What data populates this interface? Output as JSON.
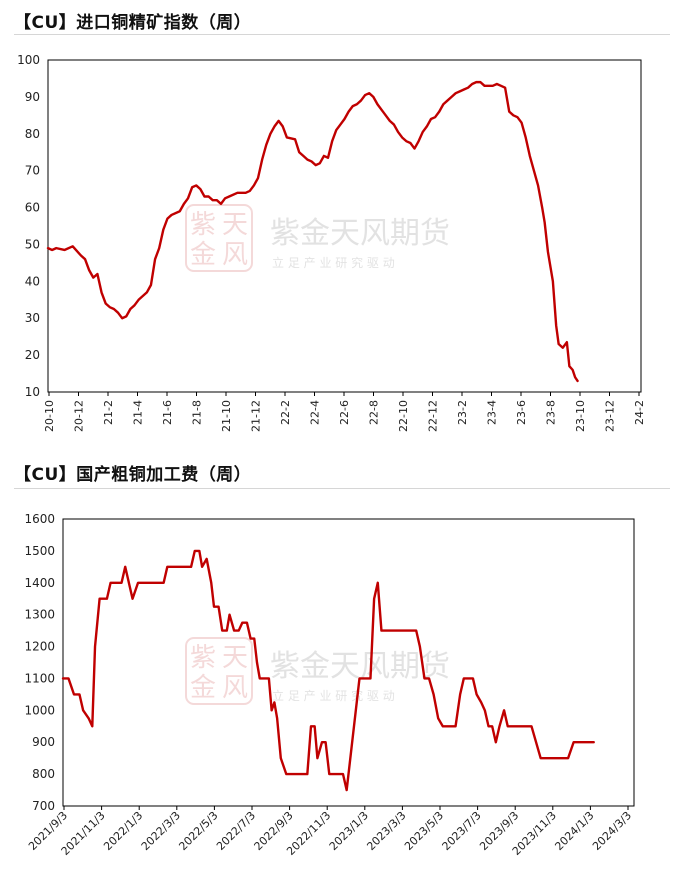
{
  "chart_data": [
    {
      "type": "line",
      "title": "【CU】进口铜精矿指数（周）",
      "ylim": [
        10,
        100
      ],
      "yticks": [
        10,
        20,
        30,
        40,
        50,
        60,
        70,
        80,
        90,
        100
      ],
      "xticks": [
        "20-10",
        "20-12",
        "21-2",
        "21-4",
        "21-6",
        "21-8",
        "21-10",
        "21-12",
        "22-2",
        "22-4",
        "22-6",
        "22-8",
        "22-10",
        "22-12",
        "23-2",
        "23-4",
        "23-6",
        "23-8",
        "23-10",
        "23-12",
        "24-2"
      ],
      "x_range": [
        0,
        72
      ],
      "grid": false,
      "color": "#C00000",
      "series": [
        {
          "values": [
            [
              0,
              49
            ],
            [
              0.5,
              48.5
            ],
            [
              1,
              49
            ],
            [
              2,
              48.5
            ],
            [
              3,
              49.5
            ],
            [
              4,
              47
            ],
            [
              4.5,
              46
            ],
            [
              5,
              43
            ],
            [
              5.5,
              41
            ],
            [
              6,
              42
            ],
            [
              6.5,
              37
            ],
            [
              7,
              34
            ],
            [
              7.5,
              33
            ],
            [
              8,
              32.5
            ],
            [
              8.5,
              31.5
            ],
            [
              9,
              30
            ],
            [
              9.5,
              30.5
            ],
            [
              10,
              32.5
            ],
            [
              10.5,
              33.5
            ],
            [
              11,
              35
            ],
            [
              12,
              37
            ],
            [
              12.5,
              39
            ],
            [
              13,
              46
            ],
            [
              13.5,
              49
            ],
            [
              14,
              54
            ],
            [
              14.5,
              57
            ],
            [
              15,
              58
            ],
            [
              16,
              59
            ],
            [
              16.5,
              61
            ],
            [
              17,
              62.5
            ],
            [
              17.5,
              65.5
            ],
            [
              18,
              66
            ],
            [
              18.5,
              65
            ],
            [
              19,
              63
            ],
            [
              19.5,
              63
            ],
            [
              20,
              62
            ],
            [
              20.5,
              62
            ],
            [
              21,
              61
            ],
            [
              21.5,
              62.5
            ],
            [
              22,
              63
            ],
            [
              23,
              64
            ],
            [
              24,
              64
            ],
            [
              24.5,
              64.5
            ],
            [
              25,
              66
            ],
            [
              25.5,
              68
            ],
            [
              26,
              73
            ],
            [
              26.5,
              77
            ],
            [
              27,
              80
            ],
            [
              27.5,
              82
            ],
            [
              28,
              83.5
            ],
            [
              28.5,
              82
            ],
            [
              29,
              79
            ],
            [
              30,
              78.5
            ],
            [
              30.5,
              75
            ],
            [
              31,
              74
            ],
            [
              31.5,
              73
            ],
            [
              32,
              72.5
            ],
            [
              32.5,
              71.5
            ],
            [
              33,
              72
            ],
            [
              33.5,
              74
            ],
            [
              34,
              73.5
            ],
            [
              34.5,
              78
            ],
            [
              35,
              81
            ],
            [
              35.5,
              82.5
            ],
            [
              36,
              84
            ],
            [
              36.5,
              86
            ],
            [
              37,
              87.5
            ],
            [
              37.5,
              88
            ],
            [
              38,
              89
            ],
            [
              38.5,
              90.5
            ],
            [
              39,
              91
            ],
            [
              39.5,
              90
            ],
            [
              40,
              88
            ],
            [
              40.5,
              86.5
            ],
            [
              41,
              85
            ],
            [
              41.5,
              83.5
            ],
            [
              42,
              82.5
            ],
            [
              42.5,
              80.5
            ],
            [
              43,
              79
            ],
            [
              43.5,
              78
            ],
            [
              44,
              77.5
            ],
            [
              44.5,
              76
            ],
            [
              45,
              78
            ],
            [
              45.5,
              80.5
            ],
            [
              46,
              82
            ],
            [
              46.5,
              84
            ],
            [
              47,
              84.5
            ],
            [
              47.5,
              86
            ],
            [
              48,
              88
            ],
            [
              48.5,
              89
            ],
            [
              49,
              90
            ],
            [
              49.5,
              91
            ],
            [
              50,
              91.5
            ],
            [
              50.5,
              92
            ],
            [
              51,
              92.5
            ],
            [
              51.5,
              93.5
            ],
            [
              52,
              94
            ],
            [
              52.5,
              94
            ],
            [
              53,
              93
            ],
            [
              53.5,
              93
            ],
            [
              54,
              93
            ],
            [
              54.5,
              93.5
            ],
            [
              55,
              93
            ],
            [
              55.5,
              92.5
            ],
            [
              56,
              86
            ],
            [
              56.5,
              85
            ],
            [
              57,
              84.5
            ],
            [
              57.5,
              83
            ],
            [
              58,
              79
            ],
            [
              58.5,
              74
            ],
            [
              59,
              70
            ],
            [
              59.5,
              66
            ],
            [
              60,
              60
            ],
            [
              60.3,
              56
            ],
            [
              60.7,
              48
            ],
            [
              61,
              44
            ],
            [
              61.3,
              40
            ],
            [
              61.7,
              28
            ],
            [
              62,
              23
            ],
            [
              62.5,
              22
            ],
            [
              63,
              23.5
            ],
            [
              63.3,
              17
            ],
            [
              63.7,
              16
            ],
            [
              64,
              14
            ],
            [
              64.3,
              13
            ]
          ]
        }
      ]
    },
    {
      "type": "line",
      "title": "【CU】国产粗铜加工费（周）",
      "ylim": [
        700,
        1600
      ],
      "yticks": [
        700,
        800,
        900,
        1000,
        1100,
        1200,
        1300,
        1400,
        1500,
        1600
      ],
      "xticks": [
        "2021/9/3",
        "2021/11/3",
        "2022/1/3",
        "2022/3/3",
        "2022/5/3",
        "2022/7/3",
        "2022/9/3",
        "2022/11/3",
        "2023/1/3",
        "2023/3/3",
        "2023/5/3",
        "2023/7/3",
        "2023/9/3",
        "2023/11/3",
        "2024/1/3",
        "2024/3/3"
      ],
      "x_range": [
        0,
        31.2
      ],
      "grid": false,
      "color": "#C00000",
      "series": [
        {
          "values": [
            [
              0,
              1100
            ],
            [
              0.3,
              1100
            ],
            [
              0.6,
              1050
            ],
            [
              0.9,
              1050
            ],
            [
              1.1,
              1000
            ],
            [
              1.4,
              975
            ],
            [
              1.6,
              950
            ],
            [
              1.75,
              1200
            ],
            [
              2,
              1350
            ],
            [
              2.4,
              1350
            ],
            [
              2.6,
              1400
            ],
            [
              3.2,
              1400
            ],
            [
              3.4,
              1450
            ],
            [
              3.8,
              1350
            ],
            [
              4.1,
              1400
            ],
            [
              5.5,
              1400
            ],
            [
              5.7,
              1450
            ],
            [
              7,
              1450
            ],
            [
              7.2,
              1500
            ],
            [
              7.45,
              1500
            ],
            [
              7.6,
              1450
            ],
            [
              7.85,
              1475
            ],
            [
              8.1,
              1400
            ],
            [
              8.25,
              1325
            ],
            [
              8.5,
              1325
            ],
            [
              8.7,
              1250
            ],
            [
              8.95,
              1250
            ],
            [
              9.1,
              1300
            ],
            [
              9.35,
              1250
            ],
            [
              9.6,
              1250
            ],
            [
              9.8,
              1275
            ],
            [
              10.05,
              1275
            ],
            [
              10.25,
              1225
            ],
            [
              10.45,
              1225
            ],
            [
              10.6,
              1150
            ],
            [
              10.75,
              1100
            ],
            [
              11.25,
              1100
            ],
            [
              11.4,
              1000
            ],
            [
              11.55,
              1025
            ],
            [
              11.7,
              975
            ],
            [
              11.9,
              850
            ],
            [
              12.2,
              800
            ],
            [
              13.35,
              800
            ],
            [
              13.55,
              950
            ],
            [
              13.75,
              950
            ],
            [
              13.9,
              850
            ],
            [
              14.15,
              900
            ],
            [
              14.35,
              900
            ],
            [
              14.55,
              800
            ],
            [
              15.3,
              800
            ],
            [
              15.5,
              750
            ],
            [
              15.9,
              950
            ],
            [
              16.2,
              1100
            ],
            [
              16.8,
              1100
            ],
            [
              17,
              1350
            ],
            [
              17.2,
              1400
            ],
            [
              17.4,
              1250
            ],
            [
              19.3,
              1250
            ],
            [
              19.5,
              1200
            ],
            [
              19.75,
              1100
            ],
            [
              20,
              1100
            ],
            [
              20.25,
              1050
            ],
            [
              20.5,
              975
            ],
            [
              20.75,
              950
            ],
            [
              21.45,
              950
            ],
            [
              21.7,
              1050
            ],
            [
              21.9,
              1100
            ],
            [
              22.4,
              1100
            ],
            [
              22.6,
              1050
            ],
            [
              22.85,
              1025
            ],
            [
              23.05,
              1000
            ],
            [
              23.25,
              950
            ],
            [
              23.45,
              950
            ],
            [
              23.65,
              900
            ],
            [
              23.85,
              950
            ],
            [
              24.1,
              1000
            ],
            [
              24.3,
              950
            ],
            [
              25.6,
              950
            ],
            [
              26.1,
              850
            ],
            [
              27.6,
              850
            ],
            [
              27.9,
              900
            ],
            [
              29,
              900
            ]
          ]
        }
      ]
    }
  ],
  "watermark": {
    "brand": "紫金天风期货",
    "slogan": "立 足 产 业   研 究 驱 动",
    "seal": "紫天金风"
  }
}
